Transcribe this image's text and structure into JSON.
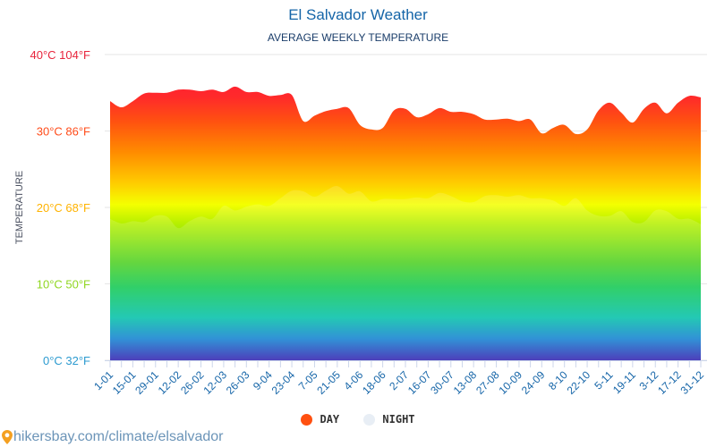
{
  "chart_data": {
    "type": "area",
    "title": "El Salvador Weather",
    "subtitle": "AVERAGE WEEKLY TEMPERATURE",
    "ylabel": "TEMPERATURE",
    "ylim": [
      0,
      40
    ],
    "grid": true,
    "y_ticks": [
      {
        "value": 40,
        "label": "40°C 104°F",
        "color": "#e8243c"
      },
      {
        "value": 30,
        "label": "30°C 86°F",
        "color": "#ff4c1a"
      },
      {
        "value": 20,
        "label": "20°C 68°F",
        "color": "#ffb300"
      },
      {
        "value": 10,
        "label": "10°C 50°F",
        "color": "#8fd61f"
      },
      {
        "value": 0,
        "label": "0°C 32°F",
        "color": "#2d9bd0"
      }
    ],
    "x": [
      "1-01",
      "8-01",
      "15-01",
      "22-01",
      "29-01",
      "5-02",
      "12-02",
      "19-02",
      "26-02",
      "5-03",
      "12-03",
      "19-03",
      "26-03",
      "2-04",
      "9-04",
      "16-04",
      "23-04",
      "30-04",
      "7-05",
      "14-05",
      "21-05",
      "28-05",
      "4-06",
      "11-06",
      "18-06",
      "25-06",
      "2-07",
      "9-07",
      "16-07",
      "23-07",
      "30-07",
      "6-08",
      "13-08",
      "20-08",
      "27-08",
      "3-09",
      "10-09",
      "17-09",
      "24-09",
      "1-10",
      "8-10",
      "15-10",
      "22-10",
      "29-10",
      "5-11",
      "12-11",
      "19-11",
      "26-11",
      "3-12",
      "10-12",
      "17-12",
      "24-12",
      "31-12"
    ],
    "x_tick_labels": [
      "1-01",
      "15-01",
      "29-01",
      "12-02",
      "26-02",
      "12-03",
      "26-03",
      "9-04",
      "23-04",
      "7-05",
      "21-05",
      "4-06",
      "18-06",
      "2-07",
      "16-07",
      "30-07",
      "13-08",
      "27-08",
      "10-09",
      "24-09",
      "8-10",
      "22-10",
      "5-11",
      "19-11",
      "3-12",
      "17-12",
      "31-12"
    ],
    "series": [
      {
        "name": "DAY",
        "color": "#ff5010",
        "values": [
          33.9,
          33.1,
          33.9,
          34.9,
          35.0,
          35.0,
          35.4,
          35.4,
          35.2,
          35.4,
          35.1,
          35.8,
          35.1,
          35.1,
          34.6,
          34.7,
          34.7,
          31.3,
          32.0,
          32.6,
          32.9,
          33.0,
          30.8,
          30.2,
          30.4,
          32.7,
          32.9,
          31.8,
          32.2,
          33.0,
          32.5,
          32.5,
          32.2,
          31.5,
          31.5,
          31.6,
          31.3,
          31.5,
          29.7,
          30.4,
          30.8,
          29.6,
          30.2,
          32.7,
          33.7,
          32.4,
          31.1,
          32.9,
          33.7,
          32.3,
          33.7,
          34.6,
          34.4
        ]
      },
      {
        "name": "NIGHT",
        "color": "#e8eef5",
        "values": [
          18.5,
          17.9,
          18.2,
          18.1,
          18.9,
          18.8,
          17.3,
          18.2,
          18.8,
          18.5,
          20.2,
          19.6,
          20.1,
          20.4,
          20.2,
          21.2,
          22.2,
          22.1,
          21.4,
          22.2,
          22.8,
          21.8,
          22.1,
          20.8,
          21.1,
          21.1,
          21.1,
          21.3,
          21.2,
          21.9,
          21.5,
          20.8,
          20.7,
          21.5,
          21.6,
          21.4,
          21.6,
          21.2,
          21.2,
          20.9,
          20.2,
          21.2,
          19.6,
          18.9,
          18.9,
          19.5,
          18.1,
          18.1,
          19.6,
          19.5,
          18.5,
          18.5,
          17.8
        ]
      }
    ],
    "legend_placement": "bottom"
  },
  "source": {
    "text": "hikersbay.com/climate/elsalvador",
    "icon": "map-pin-icon"
  }
}
